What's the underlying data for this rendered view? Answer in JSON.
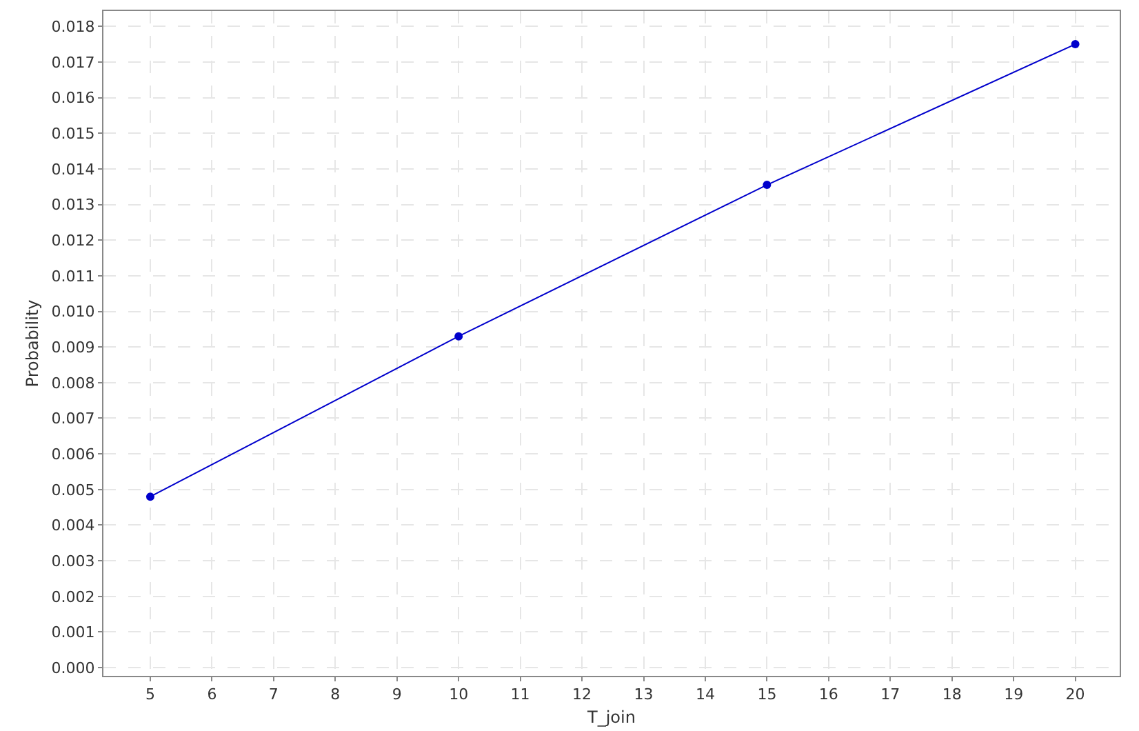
{
  "chart_data": {
    "type": "line",
    "xlabel": "T_join",
    "ylabel": "Probability",
    "x": [
      5,
      10,
      15,
      20
    ],
    "series": [
      {
        "color": "#0000cc",
        "values": [
          0.0048,
          0.0093,
          0.01355,
          0.0175
        ]
      }
    ],
    "xlim": [
      4.24,
      20.72
    ],
    "xticks": [
      5,
      6,
      7,
      8,
      9,
      10,
      11,
      12,
      13,
      14,
      15,
      16,
      17,
      18,
      19,
      20
    ],
    "ylim": [
      -0.00023,
      0.01843
    ],
    "yticks": [
      {
        "value": 0,
        "label": "0.000"
      },
      {
        "value": 0.001,
        "label": "0.001"
      },
      {
        "value": 0.002,
        "label": "0.002"
      },
      {
        "value": 0.003,
        "label": "0.003"
      },
      {
        "value": 0.004,
        "label": "0.004"
      },
      {
        "value": 0.005,
        "label": "0.005"
      },
      {
        "value": 0.006,
        "label": "0.006"
      },
      {
        "value": 0.007,
        "label": "0.007"
      },
      {
        "value": 0.008,
        "label": "0.008"
      },
      {
        "value": 0.009,
        "label": "0.009"
      },
      {
        "value": 0.01,
        "label": "0.010"
      },
      {
        "value": 0.011,
        "label": "0.011"
      },
      {
        "value": 0.012,
        "label": "0.012"
      },
      {
        "value": 0.013,
        "label": "0.013"
      },
      {
        "value": 0.014,
        "label": "0.014"
      },
      {
        "value": 0.015,
        "label": "0.015"
      },
      {
        "value": 0.016,
        "label": "0.016"
      },
      {
        "value": 0.017,
        "label": "0.017"
      },
      {
        "value": 0.018,
        "label": "0.018"
      }
    ],
    "grid": true,
    "legend": false,
    "marker": "circle",
    "line_style": "solid"
  }
}
